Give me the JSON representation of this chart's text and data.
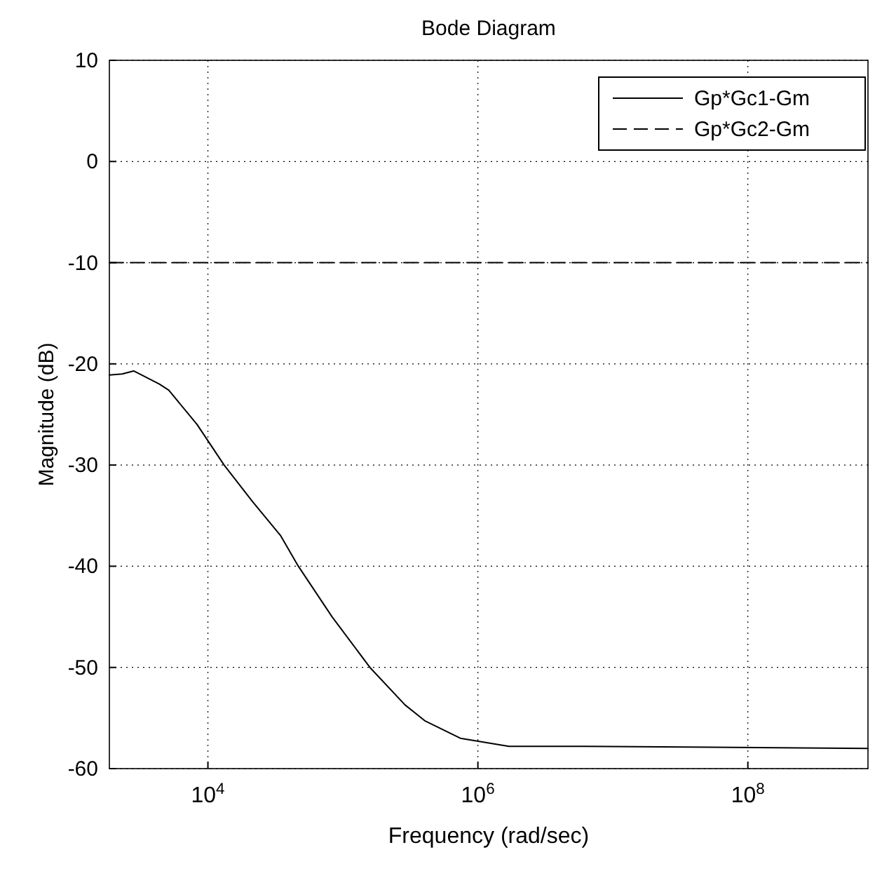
{
  "chart_data": {
    "type": "line",
    "title": "Bode Diagram",
    "xlabel": "Frequency  (rad/sec)",
    "ylabel": "Magnitude (dB)",
    "log": "x",
    "xlim": [
      1862,
      776000000
    ],
    "ylim": [
      -60,
      10
    ],
    "xticks": [
      {
        "value": 10000,
        "label": "10$^{4}$"
      },
      {
        "value": 1000000,
        "label": "10$^{6}$"
      },
      {
        "value": 100000000,
        "label": "10$^{8}$"
      }
    ],
    "yticks": [
      -60,
      -50,
      -40,
      -30,
      -20,
      -10,
      0,
      10
    ],
    "grid": true,
    "legend": "top right",
    "marker": "none",
    "series": [
      {
        "name": "Gp*Gc1-Gm",
        "color": "#000000",
        "line_style": "solid",
        "x": [
          1862,
          2317,
          2818,
          4365,
          5129,
          8318,
          13180,
          21380,
          34670,
          46770,
          83180,
          158500,
          288400,
          407400,
          741300,
          1698000,
          6166000,
          776000000
        ],
        "values": [
          -21.1,
          -21,
          -20.7,
          -22,
          -22.6,
          -26,
          -30,
          -33.6,
          -37,
          -40,
          -45,
          -50,
          -53.7,
          -55.3,
          -57,
          -57.8,
          -57.8,
          -58
        ]
      },
      {
        "name": "Gp*Gc2-Gm",
        "color": "#000000",
        "line_style": "dashed",
        "x": [
          1862,
          10000,
          100000,
          1000000,
          10000000,
          100000000,
          776000000
        ],
        "values": [
          -10,
          -10,
          -10,
          -10,
          -10,
          -10,
          -10
        ]
      }
    ]
  }
}
